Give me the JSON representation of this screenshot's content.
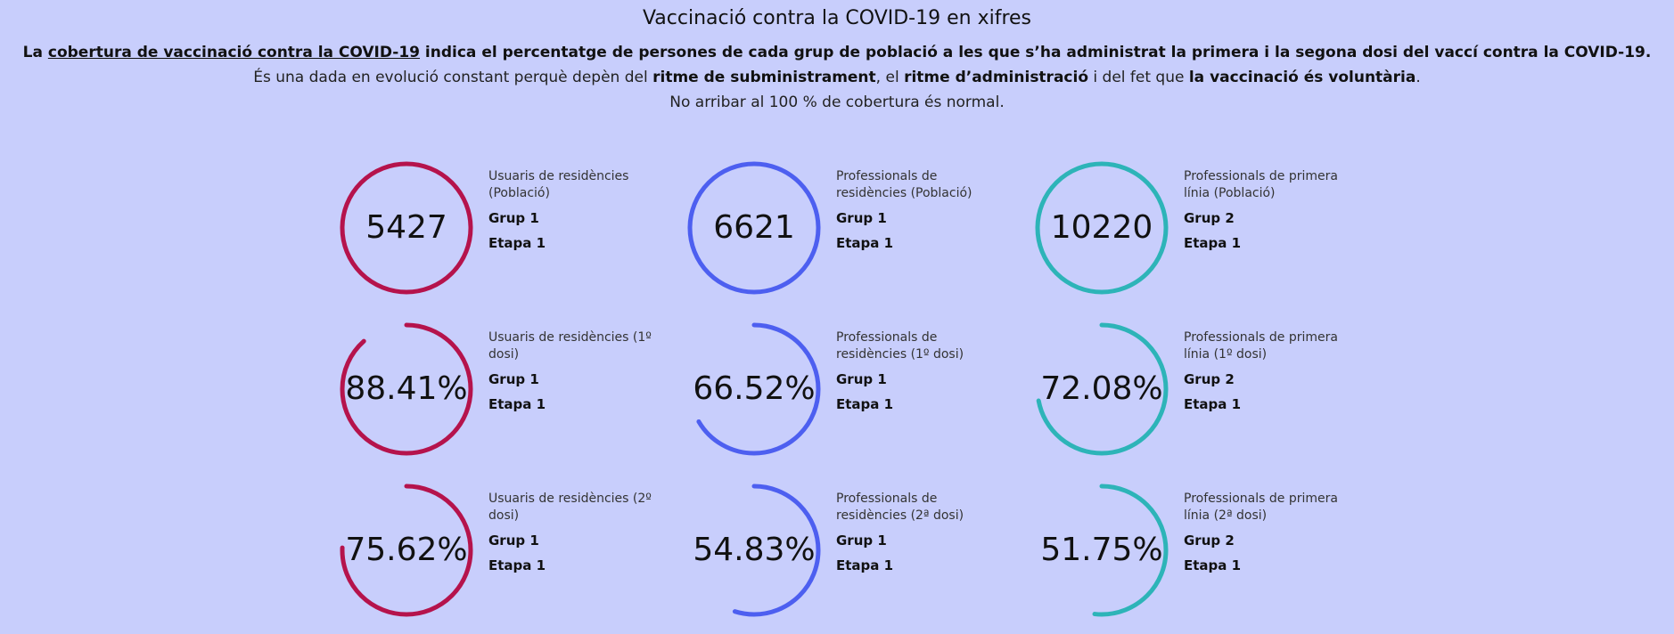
{
  "header": {
    "title": "Vaccinació contra la COVID-19 en xifres",
    "line1": {
      "t1": "La ",
      "link": "cobertura de vaccinació contra la COVID-19",
      "t2": " indica el percentatge de persones de cada grup de població a les que s’ha administrat la primera i la segona dosi del vaccí contra la COVID-19."
    },
    "line2": {
      "t1": "És una dada en evolució constant perquè depèn del ",
      "b1": "ritme de subministrament",
      "t2": ", el ",
      "b2": "ritme d’administració",
      "t3": " i del fet que ",
      "b3": "la vaccinació és voluntària",
      "t4": "."
    },
    "line3": "No arribar al 100 % de cobertura és normal."
  },
  "colors": {
    "background": "#c8cefc",
    "residents": "#b5134c",
    "residence_staff": "#4d5ff0",
    "frontline": "#2db4b8"
  },
  "cards": [
    {
      "value": "5427",
      "fraction": 1.0,
      "label": "Usuaris de residències (Població)",
      "group": "Grup 1",
      "stage": "Etapa 1",
      "color": "#b5134c"
    },
    {
      "value": "6621",
      "fraction": 1.0,
      "label": "Professionals de residències (Població)",
      "group": "Grup 1",
      "stage": "Etapa 1",
      "color": "#4d5ff0"
    },
    {
      "value": "10220",
      "fraction": 1.0,
      "label": "Professionals de primera línia (Població)",
      "group": "Grup 2",
      "stage": "Etapa 1",
      "color": "#2db4b8"
    },
    {
      "value": "88.41%",
      "fraction": 0.8841,
      "label": "Usuaris de residències (1º dosi)",
      "group": "Grup 1",
      "stage": "Etapa 1",
      "color": "#b5134c"
    },
    {
      "value": "66.52%",
      "fraction": 0.6652,
      "label": "Professionals de residències (1º dosi)",
      "group": "Grup 1",
      "stage": "Etapa 1",
      "color": "#4d5ff0"
    },
    {
      "value": "72.08%",
      "fraction": 0.7208,
      "label": "Professionals de primera línia (1º dosi)",
      "group": "Grup 2",
      "stage": "Etapa 1",
      "color": "#2db4b8"
    },
    {
      "value": "75.62%",
      "fraction": 0.7562,
      "label": "Usuaris de residències (2º dosi)",
      "group": "Grup 1",
      "stage": "Etapa 1",
      "color": "#b5134c"
    },
    {
      "value": "54.83%",
      "fraction": 0.5483,
      "label": "Professionals de residències (2ª dosi)",
      "group": "Grup 1",
      "stage": "Etapa 1",
      "color": "#4d5ff0"
    },
    {
      "value": "51.75%",
      "fraction": 0.5175,
      "label": "Professionals de primera línia (2ª dosi)",
      "group": "Grup 2",
      "stage": "Etapa 1",
      "color": "#2db4b8"
    }
  ]
}
